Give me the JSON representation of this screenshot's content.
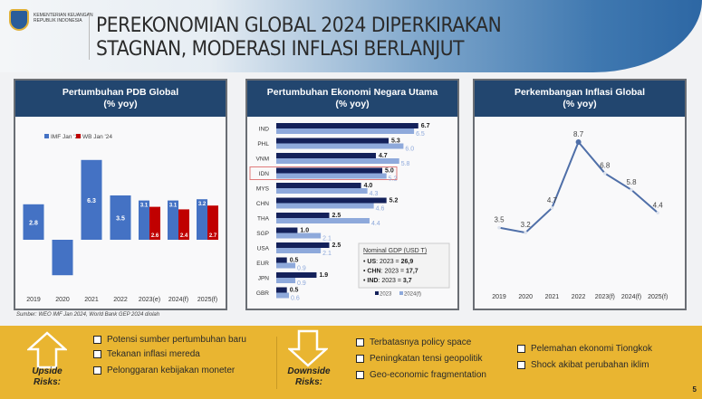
{
  "header": {
    "org_line1": "KEMENTERIAN KEUANGAN",
    "org_line2": "REPUBLIK INDONESIA",
    "title_line1": "PEREKONOMIAN GLOBAL 2024 DIPERKIRAKAN",
    "title_line2": "STAGNAN, MODERASI INFLASI BERLANJUT"
  },
  "source": "Sumber: WEO IMF Jan 2024, World Bank GEP 2024 diolah",
  "chart_data": [
    {
      "type": "bar",
      "title": "Pertumbuhan PDB Global",
      "subtitle": "(% yoy)",
      "categories": [
        "2019",
        "2020",
        "2021",
        "2022",
        "2023(e)",
        "2024(f)",
        "2025(f)"
      ],
      "series": [
        {
          "name": "IMF Jan '24",
          "color": "#4472c4",
          "values": [
            2.8,
            -2.8,
            6.3,
            3.5,
            3.1,
            3.1,
            3.2
          ],
          "labels": [
            "2.8",
            "",
            "6.3",
            "3.5",
            "3.1",
            "3.1",
            "3.2"
          ]
        },
        {
          "name": "WB Jan '24",
          "color": "#c00000",
          "values": [
            null,
            null,
            null,
            null,
            2.6,
            2.4,
            2.7
          ],
          "labels": [
            "",
            "",
            "",
            "",
            "2.6",
            "2.4",
            "2.7"
          ]
        }
      ],
      "legend": "top"
    },
    {
      "type": "bar",
      "orientation": "horizontal",
      "title": "Pertumbuhan Ekonomi Negara Utama",
      "subtitle": "(% yoy)",
      "categories": [
        "IND",
        "PHL",
        "VNM",
        "IDN",
        "MYS",
        "CHN",
        "THA",
        "SGP",
        "USA",
        "EUR",
        "JPN",
        "GBR"
      ],
      "highlight": "IDN",
      "highlight_color": "#e07a7a",
      "series": [
        {
          "name": "2023",
          "color": "#14215a",
          "values": [
            6.7,
            5.3,
            4.7,
            5.0,
            4.0,
            5.2,
            2.5,
            1.0,
            2.5,
            0.5,
            1.9,
            0.5
          ]
        },
        {
          "name": "2024(f)",
          "color": "#8ea9db",
          "values": [
            6.5,
            6.0,
            5.8,
            5.2,
            4.3,
            4.6,
            4.4,
            2.1,
            2.1,
            0.9,
            0.9,
            0.6
          ]
        }
      ],
      "legend": "bottom-right",
      "annotation": {
        "title": "Nominal GDP (USD T)",
        "items": [
          {
            "k": "US",
            "v": ": 2023 = ",
            "n": "26,9"
          },
          {
            "k": "CHN",
            "v": ": 2023 = ",
            "n": "17,7"
          },
          {
            "k": "IND",
            "v": ": 2023 = ",
            "n": "3,7"
          }
        ]
      }
    },
    {
      "type": "line",
      "title": "Perkembangan Inflasi Global",
      "subtitle": "(% yoy)",
      "categories": [
        "2019",
        "2020",
        "2021",
        "2022",
        "2023(f)",
        "2024(f)",
        "2025(f)"
      ],
      "values": [
        3.5,
        3.2,
        4.7,
        8.7,
        6.8,
        5.8,
        4.4
      ],
      "color": "#4f6fa8"
    }
  ],
  "risks": {
    "upside_label": "Upside Risks:",
    "upside": [
      "Potensi sumber pertumbuhan baru",
      "Tekanan inflasi mereda",
      "Pelonggaran kebijakan moneter"
    ],
    "downside_label": "Downside Risks:",
    "downside_a": [
      "Terbatasnya policy space",
      "Peningkatan tensi geopolitik",
      "Geo-economic fragmentation"
    ],
    "downside_b": [
      "Pelemahan ekonomi Tiongkok",
      "Shock akibat perubahan iklim"
    ]
  },
  "page_number": "5"
}
